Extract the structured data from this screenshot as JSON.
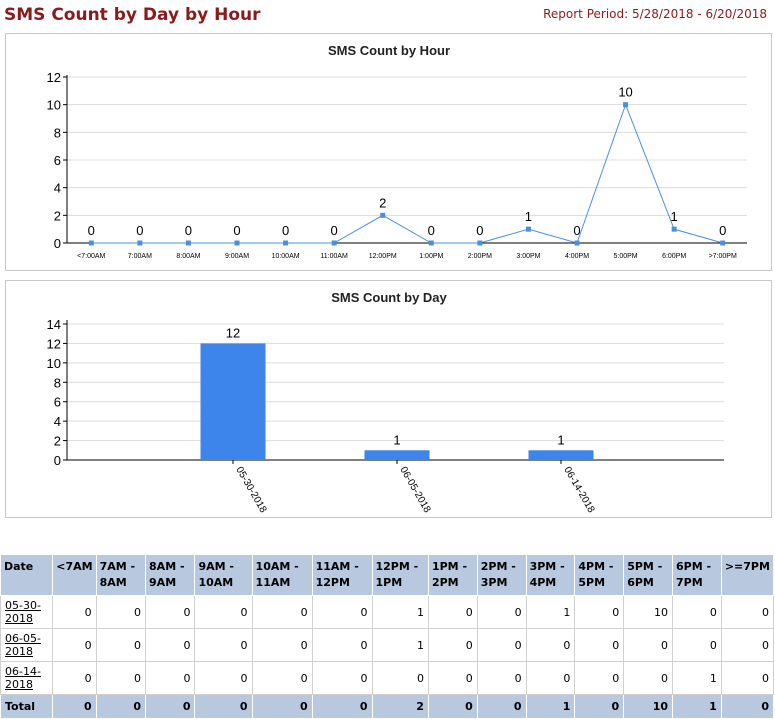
{
  "report": {
    "title": "SMS Count by Day by Hour",
    "period": "Report Period: 5/28/2018 - 6/20/2018"
  },
  "chart_data": [
    {
      "type": "line",
      "title": "SMS Count by Hour",
      "categories": [
        "<7:00AM",
        "7:00AM",
        "8:00AM",
        "9:00AM",
        "10:00AM",
        "11:00AM",
        "12:00PM",
        "1:00PM",
        "2:00PM",
        "3:00PM",
        "4:00PM",
        "5:00PM",
        "6:00PM",
        ">7:00PM"
      ],
      "values": [
        0,
        0,
        0,
        0,
        0,
        0,
        2,
        0,
        0,
        1,
        0,
        10,
        1,
        0
      ],
      "yticks": [
        0,
        2,
        4,
        6,
        8,
        10,
        12
      ],
      "ylim": [
        0,
        12
      ],
      "grid": true,
      "color": "#4a90e2"
    },
    {
      "type": "bar",
      "title": "SMS Count by Day",
      "categories": [
        "05-30-2018",
        "06-05-2018",
        "06-14-2018"
      ],
      "values": [
        12,
        1,
        1
      ],
      "yticks": [
        0,
        2,
        4,
        6,
        8,
        10,
        12,
        14
      ],
      "ylim": [
        0,
        14
      ],
      "grid": true,
      "color": "#3d85ea"
    }
  ],
  "table": {
    "headers": [
      "Date",
      "<7AM",
      "7AM - 8AM",
      "8AM - 9AM",
      "9AM - 10AM",
      "10AM - 11AM",
      "11AM - 12PM",
      "12PM - 1PM",
      "1PM - 2PM",
      "2PM - 3PM",
      "3PM - 4PM",
      "4PM - 5PM",
      "5PM - 6PM",
      "6PM - 7PM",
      ">=7PM"
    ],
    "rows": [
      {
        "date": "05-30-2018",
        "values": [
          "0",
          "0",
          "0",
          "0",
          "0",
          "0",
          "1",
          "0",
          "0",
          "1",
          "0",
          "10",
          "0",
          "0"
        ]
      },
      {
        "date": "06-05-2018",
        "values": [
          "0",
          "0",
          "0",
          "0",
          "0",
          "0",
          "1",
          "0",
          "0",
          "0",
          "0",
          "0",
          "0",
          "0"
        ]
      },
      {
        "date": "06-14-2018",
        "values": [
          "0",
          "0",
          "0",
          "0",
          "0",
          "0",
          "0",
          "0",
          "0",
          "0",
          "0",
          "0",
          "1",
          "0"
        ]
      }
    ],
    "total": {
      "label": "Total",
      "values": [
        "0",
        "0",
        "0",
        "0",
        "0",
        "0",
        "2",
        "0",
        "0",
        "1",
        "0",
        "10",
        "1",
        "0"
      ]
    }
  }
}
